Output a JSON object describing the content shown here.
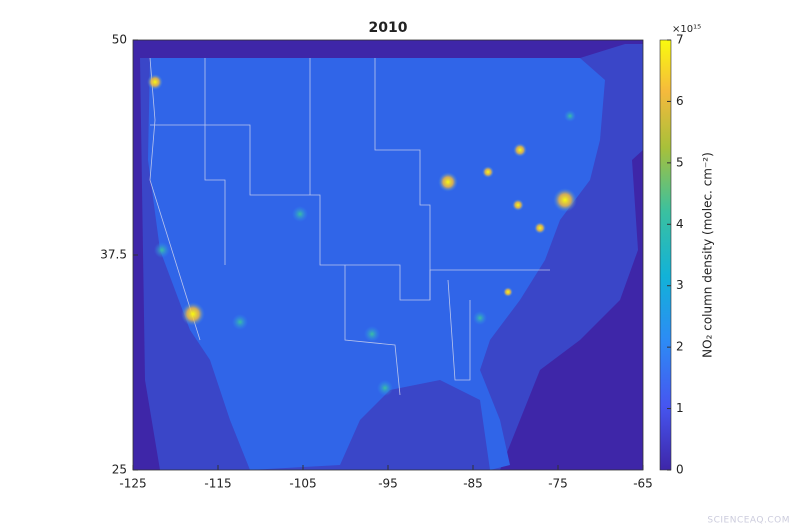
{
  "map": {
    "title": "2010",
    "xlim": [
      -125,
      -65
    ],
    "xticks": [
      -125,
      -115,
      -105,
      -95,
      -85,
      -75,
      -65
    ],
    "ylim": [
      25,
      50
    ],
    "yticks": [
      25,
      37.5,
      50
    ],
    "colorbar": {
      "lim": [
        0,
        7
      ],
      "ticks": [
        0,
        1,
        2,
        3,
        4,
        5,
        6,
        7
      ],
      "exponent": "×10¹⁵",
      "label": "NO₂ column density (molec. cm⁻²)"
    }
  },
  "watermark": "SCIENCEAQ.COM"
}
